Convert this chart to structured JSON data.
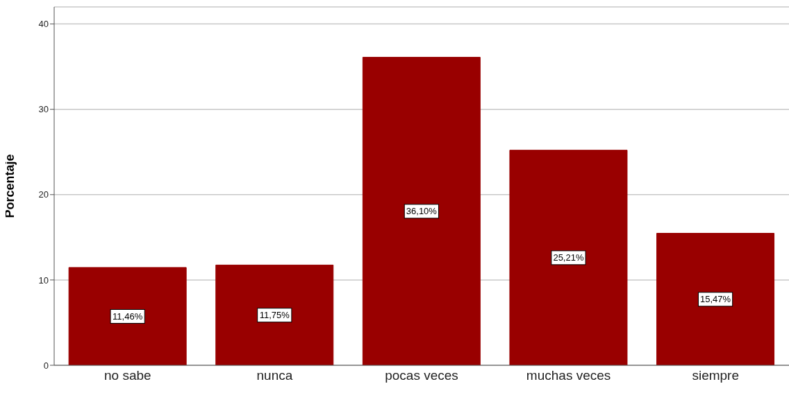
{
  "chart_data": {
    "type": "bar",
    "ylabel": "Porcentaje",
    "categories": [
      "no sabe",
      "nunca",
      "pocas veces",
      "muchas veces",
      "siempre"
    ],
    "values": [
      11.46,
      11.75,
      36.1,
      25.21,
      15.47
    ],
    "color": "#990000",
    "value_labels": [
      "11,46%",
      "11,75%",
      "36,10%",
      "25,21%",
      "15,47%"
    ],
    "ylim": [
      0,
      42
    ],
    "yticks": [
      0,
      10,
      20,
      30,
      40
    ],
    "grid": "y"
  }
}
